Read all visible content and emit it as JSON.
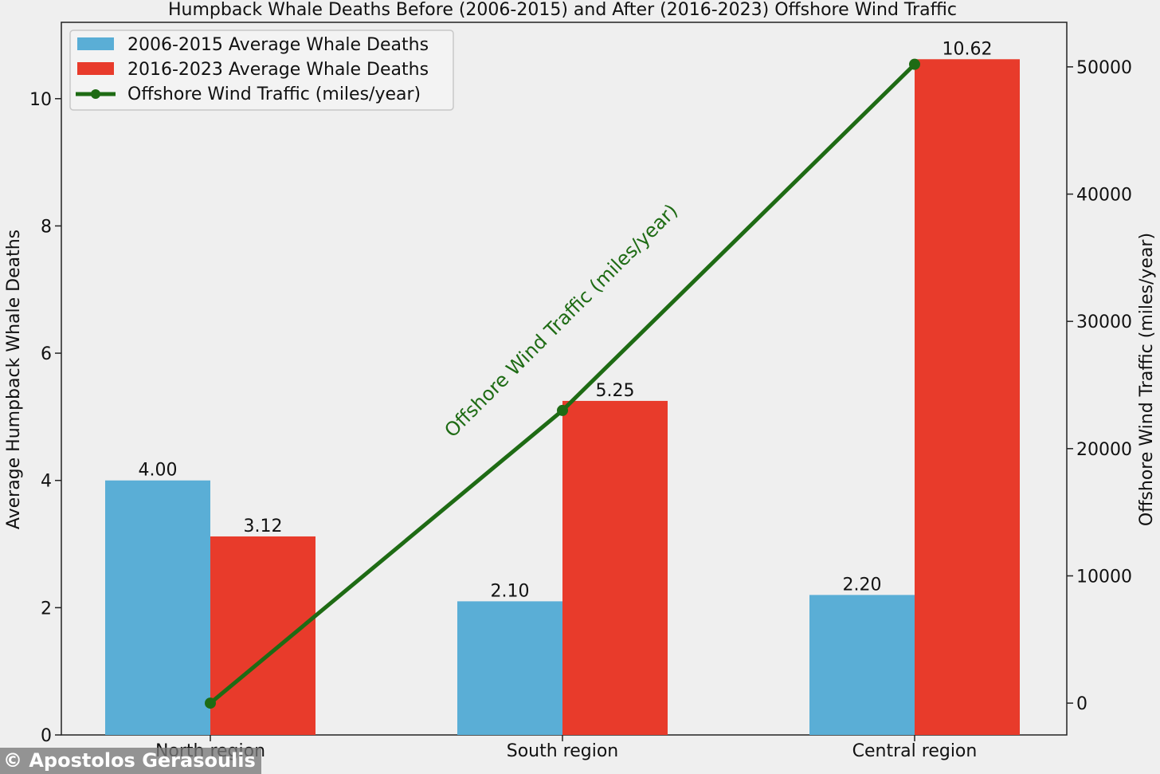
{
  "chart_data": {
    "type": "bar",
    "title": "Humpback Whale Deaths Before (2006-2015) and After (2016-2023) Offshore Wind Traffic",
    "categories": [
      "North region",
      "South region",
      "Central region"
    ],
    "series": [
      {
        "name": "2006-2015 Average Whale Deaths",
        "values": [
          4.0,
          2.1,
          2.2
        ],
        "labels": [
          "4.00",
          "2.10",
          "2.20"
        ],
        "color": "#5aaed6"
      },
      {
        "name": "2016-2023 Average Whale Deaths",
        "values": [
          3.12,
          5.25,
          10.62
        ],
        "labels": [
          "3.12",
          "5.25",
          "10.62"
        ],
        "color": "#e83b2b"
      }
    ],
    "line_series": {
      "name": "Offshore Wind  Traffic (miles/year)",
      "values": [
        0,
        23000,
        50200
      ],
      "color": "#1e6b14",
      "annotation": "Offshore Wind  Traffic (miles/year)"
    },
    "ylabel": "Average Humpback Whale Deaths",
    "y2label": "Offshore Wind Traffic (miles/year)",
    "ylim": [
      0,
      11.2
    ],
    "y2lim": [
      -2500,
      53500
    ],
    "yticks": [
      0,
      2,
      4,
      6,
      8,
      10
    ],
    "y2ticks": [
      0,
      10000,
      20000,
      30000,
      40000,
      50000
    ],
    "legend_position": "top-left",
    "grid": false
  },
  "credit": "© Apostolos Gerasoulis"
}
